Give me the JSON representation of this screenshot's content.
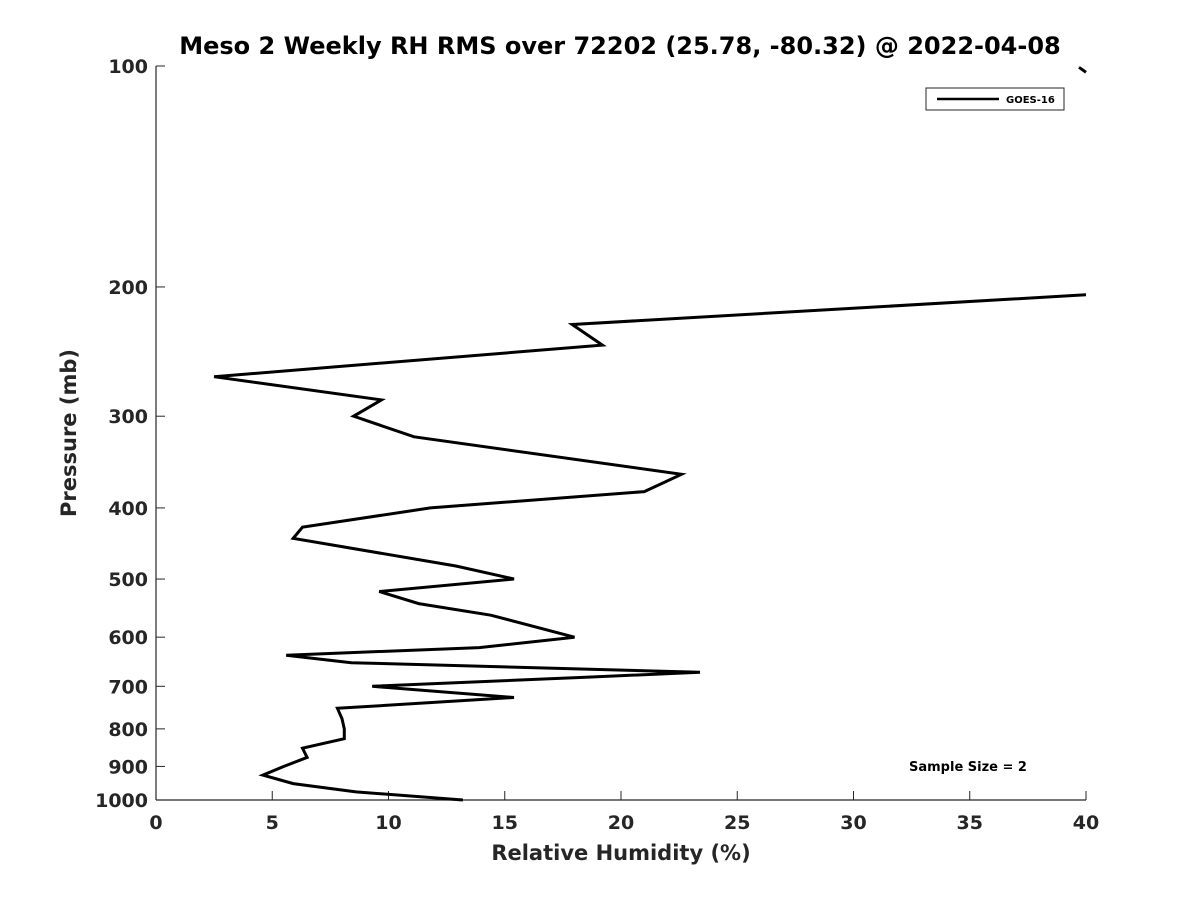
{
  "chart_data": {
    "type": "line",
    "title": "Meso 2 Weekly RH RMS over 72202 (25.78, -80.32) @ 2022-04-08",
    "xlabel": "Relative Humidity (%)",
    "ylabel": "Pressure (mb)",
    "xlim": [
      0,
      40
    ],
    "ylim": [
      100,
      1000
    ],
    "yscale": "log",
    "y_reversed": true,
    "grid": false,
    "xticks": [
      0,
      5,
      10,
      15,
      20,
      25,
      30,
      35,
      40
    ],
    "yticks": [
      100,
      200,
      300,
      400,
      500,
      600,
      700,
      800,
      900,
      1000
    ],
    "legend": {
      "position": "top-right",
      "entries": [
        "GOES-16"
      ]
    },
    "annotation": "Sample Size = 2",
    "series": [
      {
        "name": "GOES-16",
        "color": "#000000",
        "points": [
          [
            13.2,
            1000
          ],
          [
            8.6,
            975
          ],
          [
            5.9,
            950
          ],
          [
            4.6,
            925
          ],
          [
            5.5,
            900
          ],
          [
            6.5,
            875
          ],
          [
            6.3,
            850
          ],
          [
            8.1,
            825
          ],
          [
            8.1,
            800
          ],
          [
            8.0,
            775
          ],
          [
            7.8,
            750
          ],
          [
            15.4,
            725
          ],
          [
            9.3,
            700
          ],
          [
            18.6,
            680
          ],
          [
            23.4,
            670
          ],
          [
            8.4,
            650
          ],
          [
            5.6,
            635
          ],
          [
            13.9,
            620
          ],
          [
            18.0,
            600
          ],
          [
            14.4,
            560
          ],
          [
            11.3,
            540
          ],
          [
            9.6,
            520
          ],
          [
            15.4,
            500
          ],
          [
            12.9,
            480
          ],
          [
            5.9,
            440
          ],
          [
            6.3,
            425
          ],
          [
            11.8,
            400
          ],
          [
            21.0,
            380
          ],
          [
            22.6,
            360
          ],
          [
            11.1,
            320
          ],
          [
            8.5,
            300
          ],
          [
            9.7,
            285
          ],
          [
            2.5,
            265
          ],
          [
            19.2,
            240
          ],
          [
            17.9,
            225
          ],
          [
            40.0,
            205
          ]
        ],
        "upper_segment": [
          [
            39.7,
            100.4
          ],
          [
            40.0,
            102.0
          ]
        ]
      }
    ]
  }
}
